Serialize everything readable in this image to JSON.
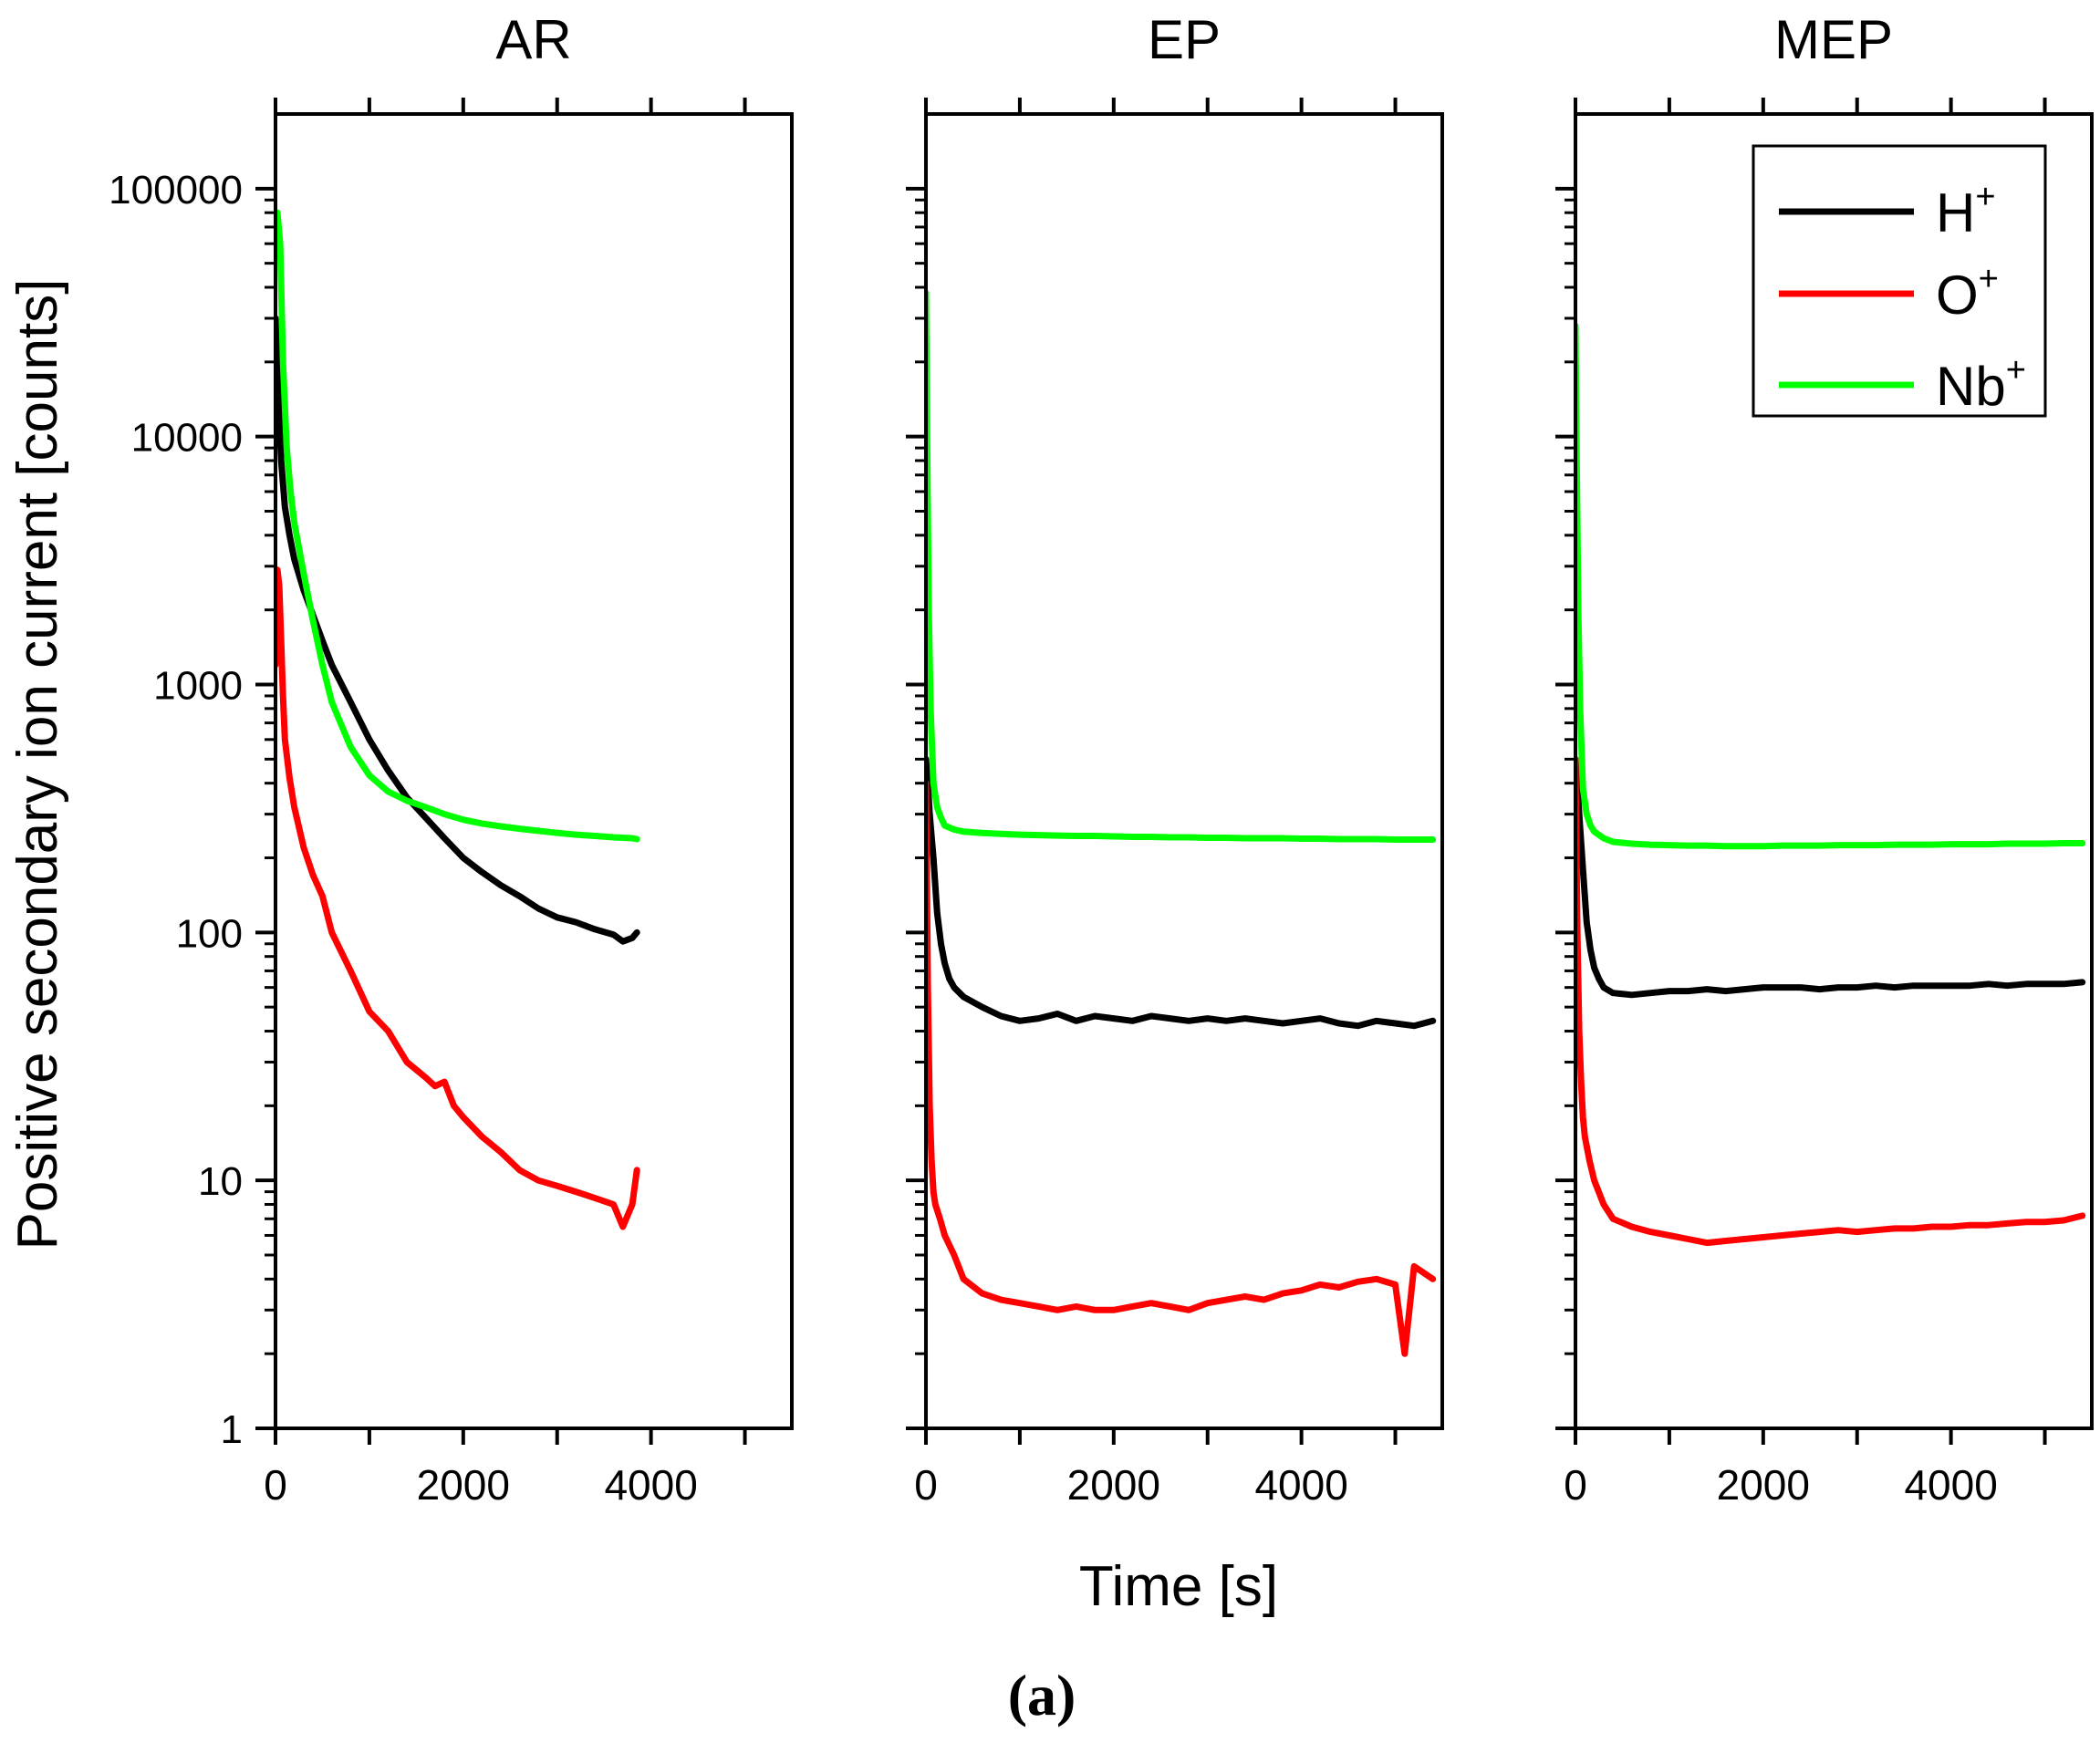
{
  "figure": {
    "ylabel": "Positive secondary ion current [counts]",
    "xlabel": "Time [s]",
    "caption": "(a)"
  },
  "legend": {
    "placement": "top-right of MEP panel",
    "entries": [
      {
        "ion": "H",
        "charge": "+",
        "color": "#000000"
      },
      {
        "ion": "O",
        "charge": "+",
        "color": "#ff0000"
      },
      {
        "ion": "Nb",
        "charge": "+",
        "color": "#00ff00"
      }
    ]
  },
  "chart_data": [
    {
      "type": "line",
      "title": "AR",
      "xlabel": "Time [s]",
      "ylabel": "Positive secondary ion current [counts]",
      "xlim": [
        0,
        5500
      ],
      "ylim": [
        1,
        200000
      ],
      "yscale": "log",
      "xticks": [
        0,
        2000,
        4000
      ],
      "yticks": [
        "1",
        "10",
        "100",
        "1000",
        "10000",
        "100000"
      ],
      "series": [
        {
          "name": "H+",
          "color": "#000000",
          "x": [
            0,
            30,
            60,
            100,
            150,
            200,
            300,
            400,
            500,
            600,
            800,
            1000,
            1200,
            1400,
            1600,
            1800,
            2000,
            2200,
            2400,
            2600,
            2800,
            3000,
            3200,
            3400,
            3600,
            3700,
            3800,
            3850
          ],
          "y": [
            30000,
            15000,
            8000,
            5200,
            4000,
            3200,
            2400,
            1900,
            1500,
            1200,
            850,
            600,
            450,
            350,
            290,
            240,
            200,
            175,
            155,
            140,
            125,
            115,
            110,
            103,
            98,
            92,
            95,
            100
          ]
        },
        {
          "name": "O+",
          "color": "#ff0000",
          "x": [
            0,
            20,
            40,
            60,
            80,
            100,
            150,
            200,
            300,
            400,
            500,
            600,
            800,
            1000,
            1200,
            1400,
            1600,
            1700,
            1800,
            1900,
            2000,
            2200,
            2400,
            2600,
            2800,
            3000,
            3200,
            3400,
            3600,
            3700,
            3800,
            3850
          ],
          "y": [
            1200,
            2900,
            2500,
            1500,
            900,
            600,
            420,
            320,
            220,
            170,
            140,
            100,
            70,
            48,
            40,
            30,
            26,
            24,
            25,
            20,
            18,
            15,
            13,
            11,
            10,
            9.5,
            9,
            8.5,
            8,
            6.5,
            8,
            11
          ]
        },
        {
          "name": "Nb+",
          "color": "#00ff00",
          "x": [
            0,
            20,
            50,
            80,
            120,
            160,
            200,
            300,
            400,
            500,
            600,
            800,
            1000,
            1200,
            1400,
            1600,
            1800,
            2000,
            2200,
            2400,
            2600,
            2800,
            3000,
            3200,
            3400,
            3600,
            3800,
            3850
          ],
          "y": [
            55000,
            80000,
            60000,
            20000,
            9000,
            6000,
            4500,
            2800,
            1800,
            1200,
            850,
            560,
            430,
            370,
            340,
            320,
            300,
            285,
            275,
            268,
            262,
            257,
            252,
            248,
            245,
            242,
            240,
            238
          ]
        }
      ]
    },
    {
      "type": "line",
      "title": "EP",
      "xlabel": "Time [s]",
      "ylabel": "Positive secondary ion current [counts]",
      "xlim": [
        0,
        5500
      ],
      "ylim": [
        1,
        200000
      ],
      "yscale": "log",
      "xticks": [
        0,
        2000,
        4000
      ],
      "yticks": [
        "1",
        "10",
        "100",
        "1000",
        "10000",
        "100000"
      ],
      "series": [
        {
          "name": "H+",
          "color": "#000000",
          "x": [
            0,
            20,
            40,
            80,
            120,
            160,
            200,
            250,
            300,
            400,
            600,
            800,
            1000,
            1200,
            1400,
            1600,
            1800,
            2000,
            2200,
            2400,
            2600,
            2800,
            3000,
            3200,
            3400,
            3600,
            3800,
            4000,
            4200,
            4400,
            4600,
            4800,
            5000,
            5200,
            5400
          ],
          "y": [
            500,
            400,
            300,
            200,
            120,
            90,
            75,
            65,
            60,
            55,
            50,
            46,
            44,
            45,
            47,
            44,
            46,
            45,
            44,
            46,
            45,
            44,
            45,
            44,
            45,
            44,
            43,
            44,
            45,
            43,
            42,
            44,
            43,
            42,
            44
          ]
        },
        {
          "name": "O+",
          "color": "#ff0000",
          "x": [
            0,
            20,
            40,
            60,
            80,
            100,
            150,
            200,
            300,
            400,
            600,
            800,
            1000,
            1200,
            1400,
            1600,
            1800,
            2000,
            2200,
            2400,
            2600,
            2800,
            3000,
            3200,
            3400,
            3600,
            3800,
            4000,
            4200,
            4400,
            4600,
            4800,
            5000,
            5100,
            5200,
            5400
          ],
          "y": [
            400,
            60,
            20,
            12,
            9,
            8,
            7,
            6,
            5,
            4,
            3.5,
            3.3,
            3.2,
            3.1,
            3.0,
            3.1,
            3.0,
            3.0,
            3.1,
            3.2,
            3.1,
            3.0,
            3.2,
            3.3,
            3.4,
            3.3,
            3.5,
            3.6,
            3.8,
            3.7,
            3.9,
            4.0,
            3.8,
            2.0,
            4.5,
            4.0
          ]
        },
        {
          "name": "Nb+",
          "color": "#00ff00",
          "x": [
            0,
            15,
            30,
            50,
            80,
            120,
            160,
            200,
            300,
            400,
            600,
            800,
            1000,
            1200,
            1400,
            1600,
            1800,
            2000,
            2200,
            2400,
            2600,
            2800,
            3000,
            3200,
            3400,
            3600,
            3800,
            4000,
            4200,
            4400,
            4600,
            4800,
            5000,
            5200,
            5400
          ],
          "y": [
            38000,
            8000,
            2000,
            800,
            400,
            320,
            290,
            270,
            260,
            255,
            252,
            250,
            248,
            247,
            246,
            245,
            245,
            244,
            243,
            243,
            242,
            242,
            241,
            241,
            240,
            240,
            240,
            239,
            239,
            238,
            238,
            238,
            237,
            237,
            237
          ]
        }
      ]
    },
    {
      "type": "line",
      "title": "MEP",
      "xlabel": "Time [s]",
      "ylabel": "Positive secondary ion current [counts]",
      "xlim": [
        0,
        5500
      ],
      "ylim": [
        1,
        200000
      ],
      "yscale": "log",
      "xticks": [
        0,
        2000,
        4000
      ],
      "yticks": [
        "1",
        "10",
        "100",
        "1000",
        "10000",
        "100000"
      ],
      "series": [
        {
          "name": "H+",
          "color": "#000000",
          "x": [
            0,
            20,
            40,
            80,
            120,
            160,
            200,
            250,
            300,
            400,
            600,
            800,
            1000,
            1200,
            1400,
            1600,
            1800,
            2000,
            2200,
            2400,
            2600,
            2800,
            3000,
            3200,
            3400,
            3600,
            3800,
            4000,
            4200,
            4400,
            4600,
            4800,
            5000,
            5200,
            5400
          ],
          "y": [
            500,
            400,
            300,
            180,
            110,
            85,
            72,
            65,
            60,
            57,
            56,
            57,
            58,
            58,
            59,
            58,
            59,
            60,
            60,
            60,
            59,
            60,
            60,
            61,
            60,
            61,
            61,
            61,
            61,
            62,
            61,
            62,
            62,
            62,
            63
          ]
        },
        {
          "name": "O+",
          "color": "#ff0000",
          "x": [
            0,
            20,
            40,
            60,
            80,
            100,
            150,
            200,
            300,
            400,
            600,
            800,
            1000,
            1200,
            1400,
            1600,
            1800,
            2000,
            2200,
            2400,
            2600,
            2800,
            3000,
            3200,
            3400,
            3600,
            3800,
            4000,
            4200,
            4400,
            4600,
            4800,
            5000,
            5200,
            5400
          ],
          "y": [
            500,
            100,
            40,
            25,
            18,
            15,
            12,
            10,
            8,
            7,
            6.5,
            6.2,
            6.0,
            5.8,
            5.6,
            5.7,
            5.8,
            5.9,
            6.0,
            6.1,
            6.2,
            6.3,
            6.2,
            6.3,
            6.4,
            6.4,
            6.5,
            6.5,
            6.6,
            6.6,
            6.7,
            6.8,
            6.8,
            6.9,
            7.2
          ]
        },
        {
          "name": "Nb+",
          "color": "#00ff00",
          "x": [
            0,
            15,
            30,
            50,
            80,
            120,
            160,
            200,
            300,
            400,
            600,
            800,
            1000,
            1200,
            1400,
            1600,
            1800,
            2000,
            2200,
            2400,
            2600,
            2800,
            3000,
            3200,
            3400,
            3600,
            3800,
            4000,
            4200,
            4400,
            4600,
            4800,
            5000,
            5200,
            5400
          ],
          "y": [
            28000,
            7000,
            2000,
            800,
            380,
            300,
            270,
            255,
            240,
            232,
            228,
            226,
            225,
            224,
            224,
            223,
            223,
            223,
            224,
            224,
            224,
            225,
            225,
            225,
            226,
            226,
            226,
            227,
            227,
            227,
            228,
            228,
            228,
            229,
            229
          ]
        }
      ]
    }
  ]
}
